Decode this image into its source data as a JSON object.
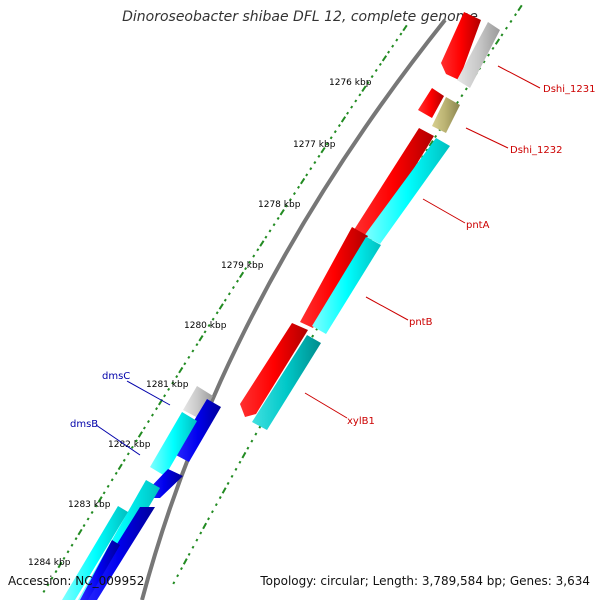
{
  "title": "Dinoroseobacter shibae DFL 12, complete genome",
  "accession": "Accession: NC_009952",
  "summary": "Topology: circular; Length: 3,789,584 bp; Genes: 3,634",
  "ticks": [
    "1276 kbp",
    "1277 kbp",
    "1278 kbp",
    "1279 kbp",
    "1280 kbp",
    "1281 kbp",
    "1282 kbp",
    "1283 kbp",
    "1284 kbp"
  ],
  "colors": {
    "forward_cds": "#ff0000",
    "forward_gene": "#00ffff",
    "reverse_cds": "#0000ee",
    "reverse_gene": "#00ffff",
    "other_gene": "#bbbbbb",
    "pseudo_gene": "#b8b070",
    "xylB1_gene": "#00cccc",
    "backbone": "#777777",
    "tick": "#228b22",
    "label_forward": "#cc0000",
    "label_reverse": "#0000aa"
  },
  "labels": {
    "dshi1231": "Dshi_1231",
    "dshi1232": "Dshi_1232",
    "pntA": "pntA",
    "pntB": "pntB",
    "xylB1": "xylB1",
    "dmsC": "dmsC",
    "dmsB": "dmsB"
  }
}
